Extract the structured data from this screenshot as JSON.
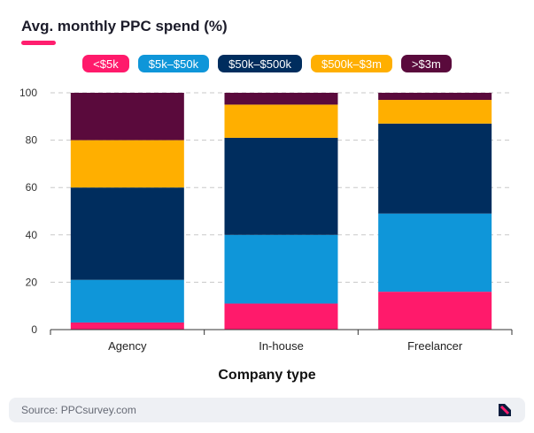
{
  "header": {
    "title": "Avg. monthly PPC spend (%)"
  },
  "legend": [
    {
      "label": "<$5k",
      "color": "#ff1a6b"
    },
    {
      "label": "$5k–$50k",
      "color": "#0f96d9"
    },
    {
      "label": "$50k–$500k",
      "color": "#002d5e"
    },
    {
      "label": "$500k–$3m",
      "color": "#ffaf00"
    },
    {
      "label": ">$3m",
      "color": "#5a0a3c"
    }
  ],
  "chart_data": {
    "type": "bar",
    "stacked": true,
    "categories": [
      "Agency",
      "In-house",
      "Freelancer"
    ],
    "series": [
      {
        "name": "<$5k",
        "color": "#ff1a6b",
        "values": [
          3,
          11,
          16
        ]
      },
      {
        "name": "$5k–$50k",
        "color": "#0f96d9",
        "values": [
          18,
          29,
          33
        ]
      },
      {
        "name": "$50k–$500k",
        "color": "#002d5e",
        "values": [
          39,
          41,
          38
        ]
      },
      {
        "name": "$500k–$3m",
        "color": "#ffaf00",
        "values": [
          20,
          14,
          10
        ]
      },
      {
        "name": ">$3m",
        "color": "#5a0a3c",
        "values": [
          20,
          5,
          3
        ]
      }
    ],
    "title": "Avg. monthly PPC spend (%)",
    "xlabel": "Company type",
    "ylabel": "",
    "ylim": [
      0,
      100
    ],
    "yticks": [
      0,
      20,
      40,
      60,
      80,
      100
    ],
    "grid": true,
    "legend_position": "top"
  },
  "footer": {
    "source": "Source: PPCsurvey.com",
    "logo_icon": "ppc-survey-logo-icon"
  }
}
